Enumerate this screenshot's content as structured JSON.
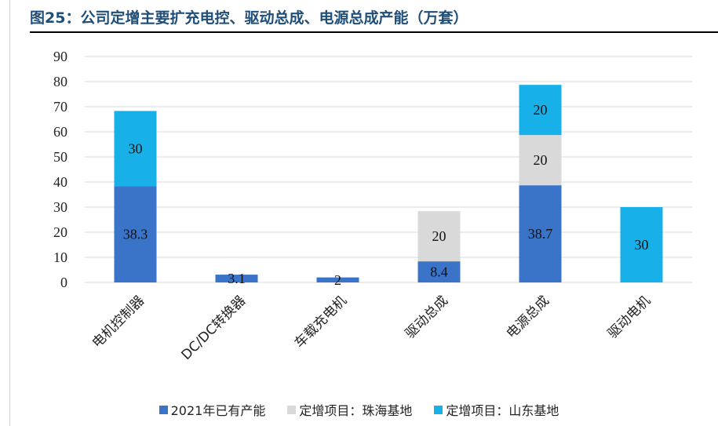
{
  "title": "图25：公司定增主要扩充电控、驱动总成、电源总成产能（万套）",
  "chart_data": {
    "type": "bar",
    "stacked": true,
    "categories": [
      "电机控制器",
      "DC/DC转换器",
      "车载充电机",
      "驱动总成",
      "电源总成",
      "驱动电机"
    ],
    "series": [
      {
        "name": "2021年已有产能",
        "color": "#3a74c8",
        "values": [
          38.3,
          3.1,
          2,
          8.4,
          38.7,
          0
        ]
      },
      {
        "name": "定增项目：珠海基地",
        "color": "#d9d9d9",
        "values": [
          0,
          0,
          0,
          20,
          20,
          0
        ]
      },
      {
        "name": "定增项目：山东基地",
        "color": "#17b0e8",
        "values": [
          30,
          0,
          0,
          0,
          20,
          30
        ]
      }
    ],
    "ylim": [
      0,
      90
    ],
    "yticks": [
      0,
      10,
      20,
      30,
      40,
      50,
      60,
      70,
      80,
      90
    ],
    "grid": true,
    "legend_position": "bottom"
  }
}
